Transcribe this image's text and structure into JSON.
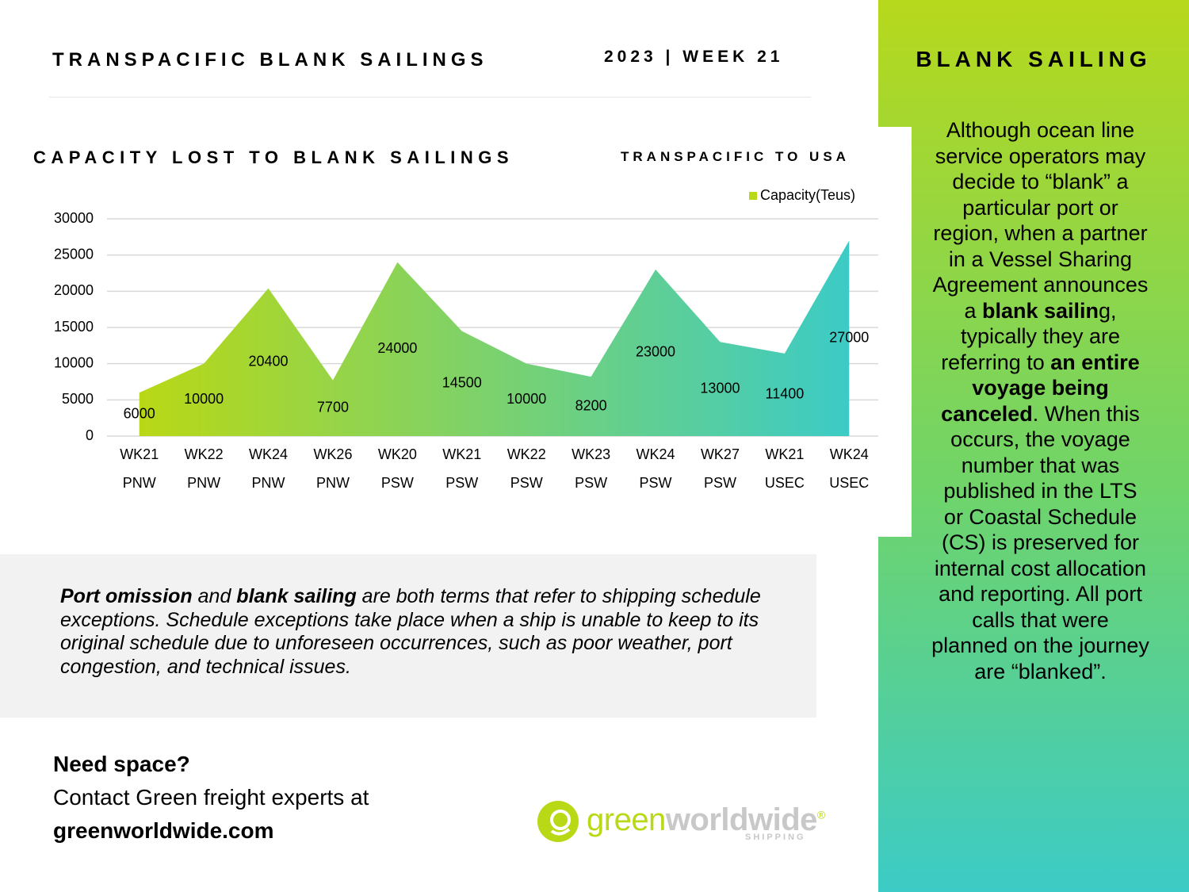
{
  "header": {
    "title": "TRANSPACIFIC BLANK SAILINGS",
    "week": "2023 | WEEK 21"
  },
  "chart_data": {
    "type": "area",
    "title": "CAPACITY LOST TO BLANK SAILINGS",
    "subtitle": "TRANSPACIFIC TO USA",
    "categories": [
      "WK21 PNW",
      "WK22 PNW",
      "WK24 PNW",
      "WK26 PNW",
      "WK20 PSW",
      "WK21 PSW",
      "WK22 PSW",
      "WK23 PSW",
      "WK24 PSW",
      "WK27 PSW",
      "WK21 USEC",
      "WK24 USEC"
    ],
    "series": [
      {
        "name": "Capacity(Teus)",
        "color": [
          "#b9d816",
          "#3ccbc6"
        ],
        "values": [
          6000,
          10000,
          20400,
          7700,
          24000,
          14500,
          10000,
          8200,
          23000,
          13000,
          11400,
          27000
        ]
      }
    ],
    "ylim": [
      0,
      30000
    ],
    "yticks": [
      0,
      5000,
      10000,
      15000,
      20000,
      25000,
      30000
    ],
    "grid": true,
    "legend": "top-right"
  },
  "info_box": {
    "runs": [
      "Port omission",
      " and ",
      "blank sailing",
      " are both terms that refer to shipping schedule exceptions. Schedule exceptions take place when a ship is unable to keep to its original schedule due to unforeseen occurrences, such as poor weather, port congestion, and technical issues."
    ]
  },
  "contact": {
    "heading": "Need space?",
    "line": "Contact Green freight experts at",
    "website": "greenworldwide.com"
  },
  "logo": {
    "part1": "green",
    "part2": "worldwide",
    "mark": "®",
    "tagline": "SHIPPING"
  },
  "sidebar": {
    "title": "BLANK SAILING",
    "runs": [
      "Although ocean line service operators may decide to “blank” a particular port or region, when a partner in a Vessel Sharing Agreement announces a ",
      "blank sailin",
      "g, typically they are referring to ",
      "an entire voyage being canceled",
      ". When this occurs, the voyage number that was published in the LTS or Coastal Schedule (CS) is preserved for internal cost allocation and reporting. All port calls that were planned on the journey are “blanked”."
    ]
  }
}
